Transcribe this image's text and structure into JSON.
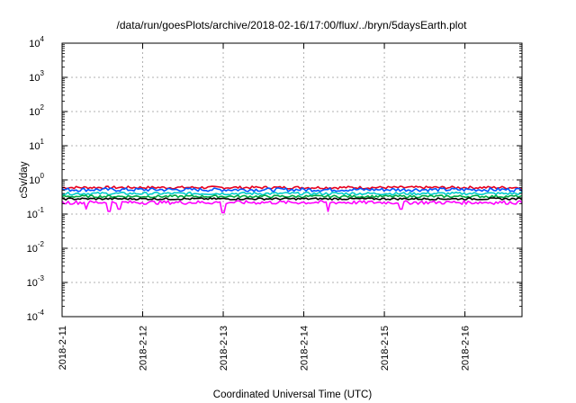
{
  "chart_data": {
    "type": "line",
    "title": "/data/run/goesPlots/archive/2018-02-16/17:00/flux/../bryn/5daysEarth.plot",
    "xlabel": "Coordinated Universal Time (UTC)",
    "ylabel": "cSv/day",
    "y_scale": "log",
    "ylim_exp": [
      -4,
      4
    ],
    "y_ticks": [
      {
        "base": "10",
        "exp": "-4"
      },
      {
        "base": "10",
        "exp": "-3"
      },
      {
        "base": "10",
        "exp": "-2"
      },
      {
        "base": "10",
        "exp": "-1"
      },
      {
        "base": "10",
        "exp": "0"
      },
      {
        "base": "10",
        "exp": "1"
      },
      {
        "base": "10",
        "exp": "2"
      },
      {
        "base": "10",
        "exp": "3"
      },
      {
        "base": "10",
        "exp": "4"
      }
    ],
    "x_ticks": [
      "2018-2-11",
      "2018-2-12",
      "2018-2-13",
      "2018-2-14",
      "2018-2-15",
      "2018-2-16"
    ],
    "xlim": [
      "2018-02-11T00:00",
      "2018-02-16T17:00"
    ],
    "grid": true,
    "series": [
      {
        "color": "#e6001e",
        "mean": 0.6,
        "variation": 0.06,
        "dips": []
      },
      {
        "color": "#0055ff",
        "mean": 0.52,
        "variation": 0.07,
        "dips": []
      },
      {
        "color": "#00cccc",
        "mean": 0.4,
        "variation": 0.04,
        "dips": []
      },
      {
        "color": "#00aa44",
        "mean": 0.33,
        "variation": 0.03,
        "dips": []
      },
      {
        "color": "#000000",
        "mean": 0.28,
        "variation": 0.02,
        "dips": []
      },
      {
        "color": "#ff00ff",
        "mean": 0.22,
        "variation": 0.03,
        "dips": [
          {
            "time": "2018-02-11T07:00",
            "value": 0.14
          },
          {
            "time": "2018-02-11T14:00",
            "value": 0.12
          },
          {
            "time": "2018-02-11T17:00",
            "value": 0.14
          },
          {
            "time": "2018-02-13T00:00",
            "value": 0.11
          },
          {
            "time": "2018-02-14T07:00",
            "value": 0.12
          },
          {
            "time": "2018-02-15T05:00",
            "value": 0.14
          }
        ]
      }
    ]
  }
}
